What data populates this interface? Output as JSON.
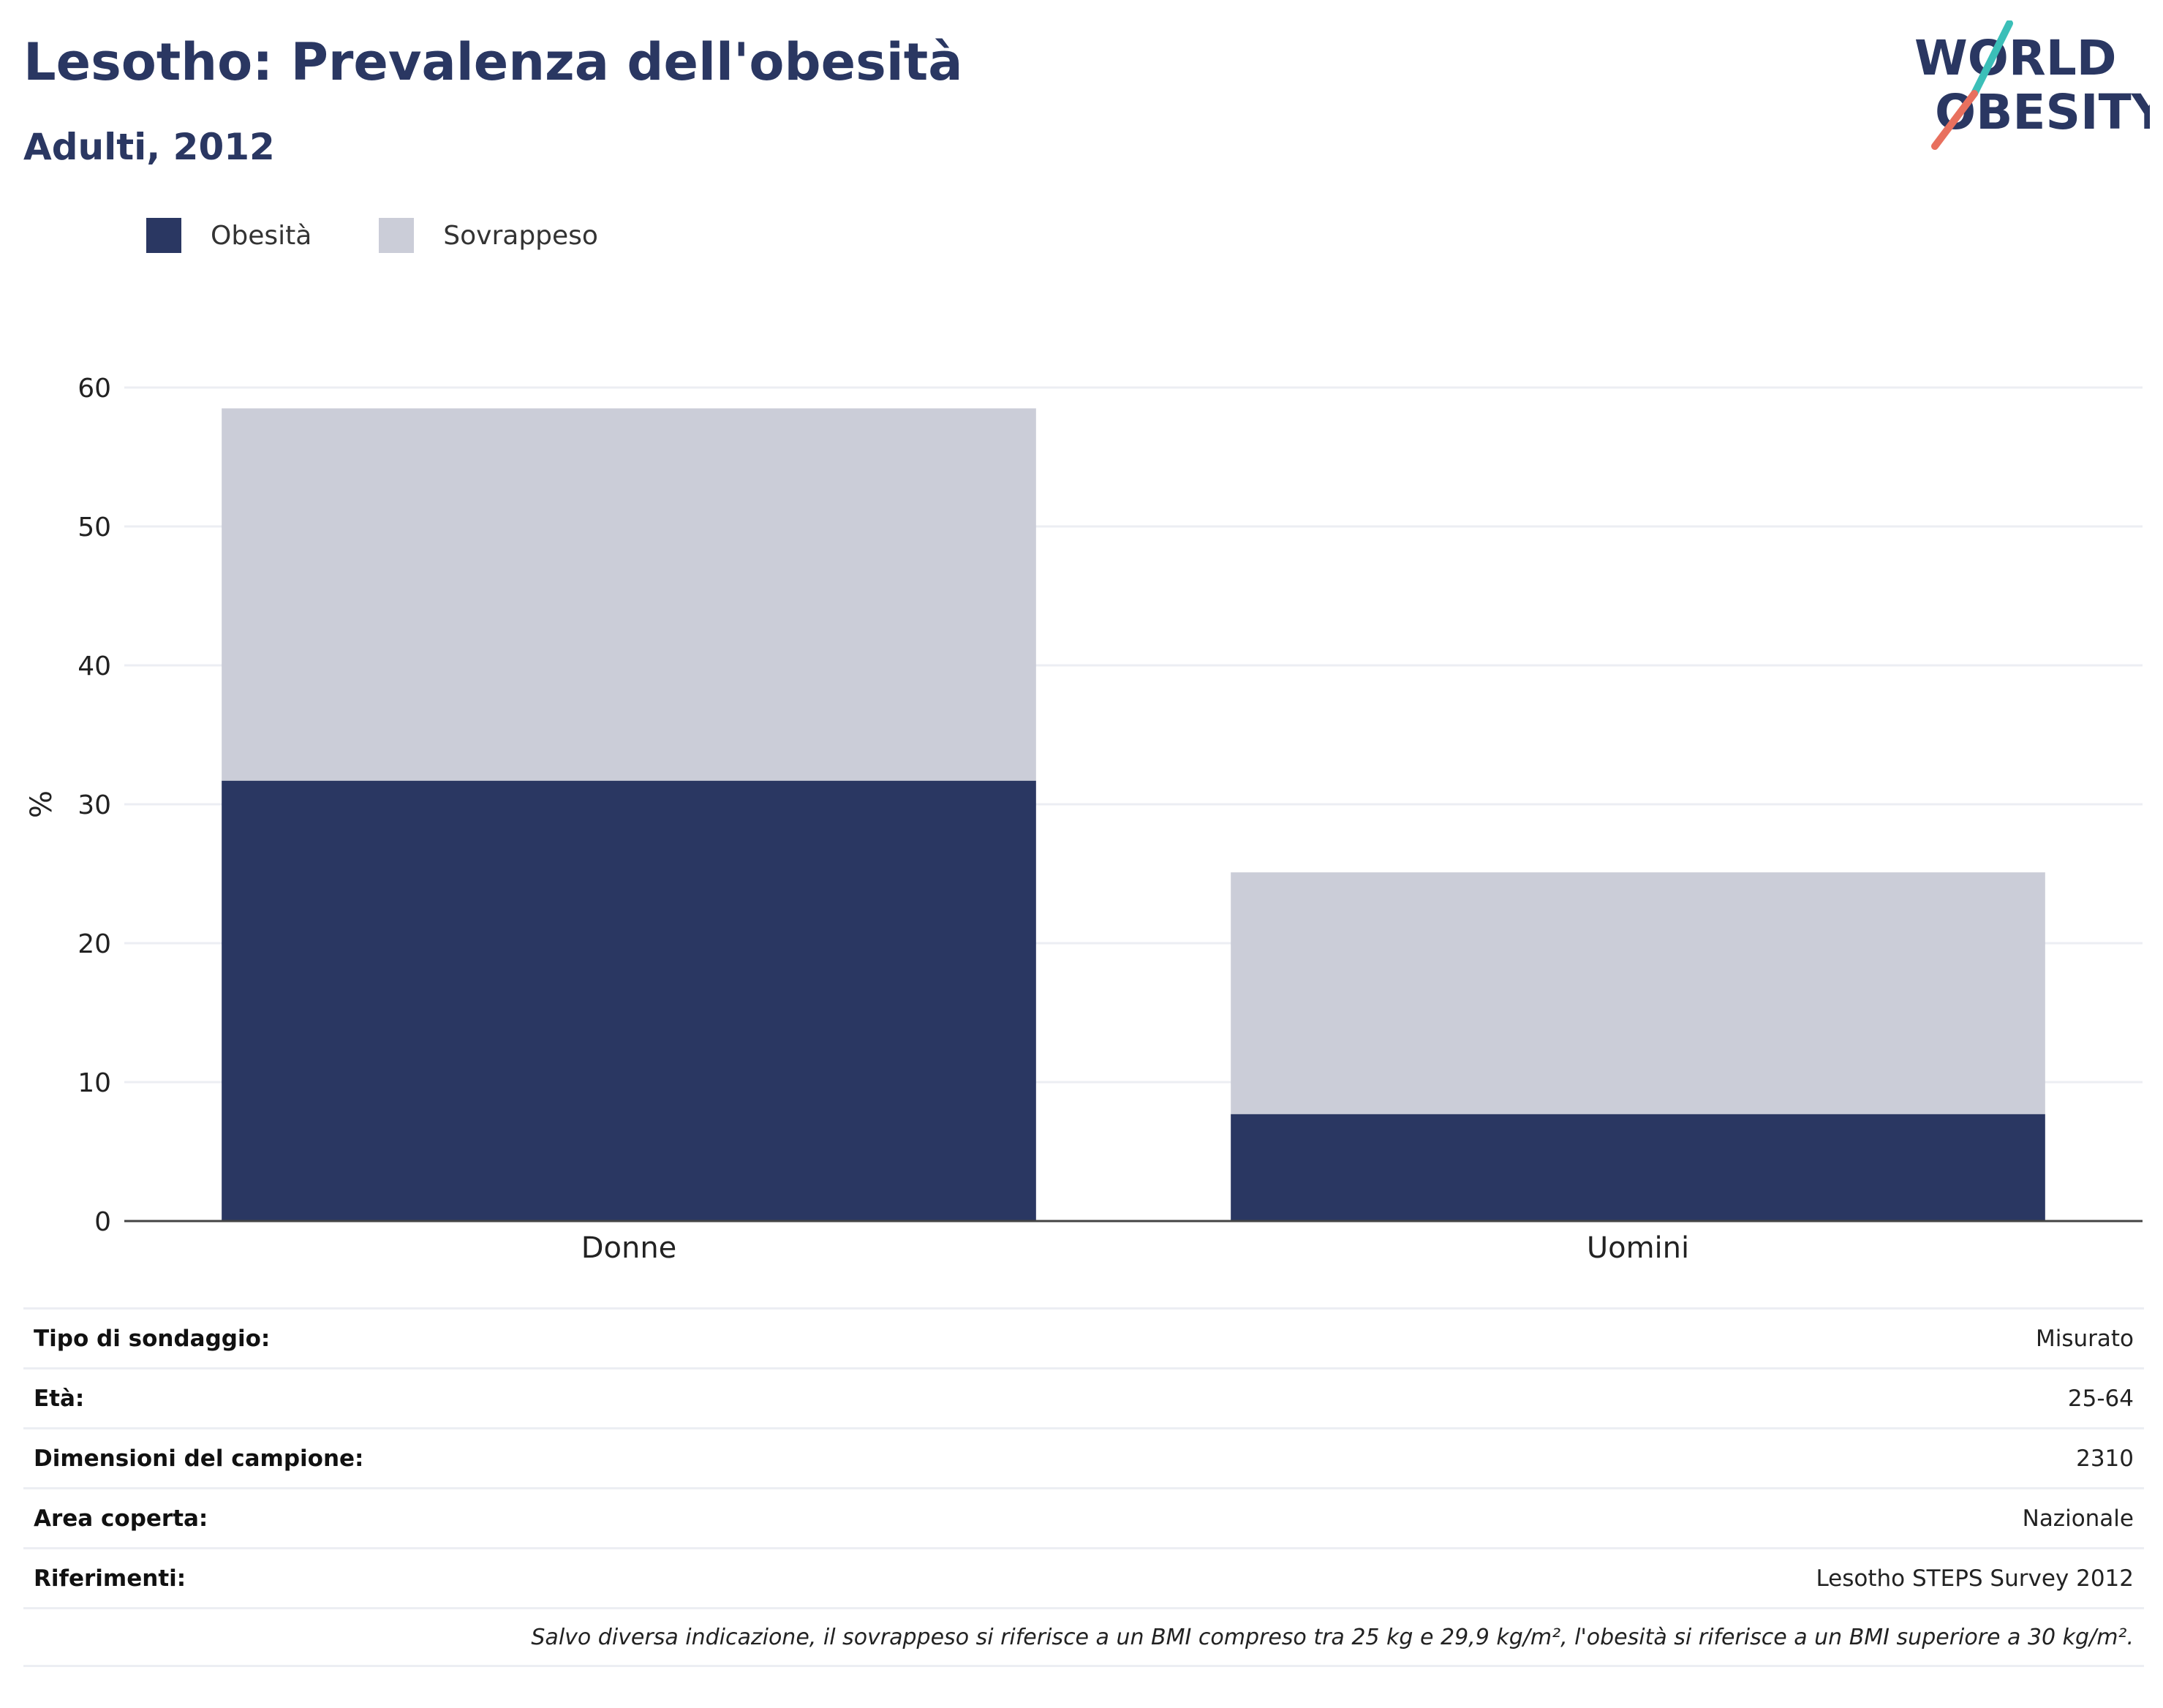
{
  "header": {
    "title": "Lesotho: Prevalenza dell'obesità",
    "subtitle": "Adulti, 2012"
  },
  "logo": {
    "line1": "WORLD",
    "line2": "OBESITY",
    "colors": {
      "text": "#2a3762",
      "slash_top": "#3bbfb8",
      "slash_bottom": "#e8705e"
    }
  },
  "legend": [
    {
      "label": "Obesità",
      "color": "#2a3762"
    },
    {
      "label": "Sovrappeso",
      "color": "#cbcdd8"
    }
  ],
  "chart_data": {
    "type": "bar",
    "stacked": true,
    "categories": [
      "Donne",
      "Uomini"
    ],
    "series": [
      {
        "name": "Obesità",
        "values": [
          31.7,
          7.7
        ],
        "color": "#2a3762"
      },
      {
        "name": "Sovrappeso",
        "values": [
          26.8,
          17.4
        ],
        "color": "#cbcdd8"
      }
    ],
    "ylabel": "%",
    "ylim": [
      0,
      60
    ],
    "yticks": [
      0,
      10,
      20,
      30,
      40,
      50,
      60
    ],
    "grid": true,
    "legend_position": "top-left"
  },
  "info": {
    "rows": [
      {
        "key": "Tipo di sondaggio:",
        "value": "Misurato"
      },
      {
        "key": "Età:",
        "value": "25-64"
      },
      {
        "key": "Dimensioni del campione:",
        "value": "2310"
      },
      {
        "key": "Area coperta:",
        "value": "Nazionale"
      },
      {
        "key": "Riferimenti:",
        "value": "Lesotho STEPS Survey 2012"
      }
    ],
    "note": "Salvo diversa indicazione, il sovrappeso si riferisce a un BMI compreso tra 25 kg e 29,9 kg/m², l'obesità si riferisce a un BMI superiore a 30 kg/m²."
  }
}
